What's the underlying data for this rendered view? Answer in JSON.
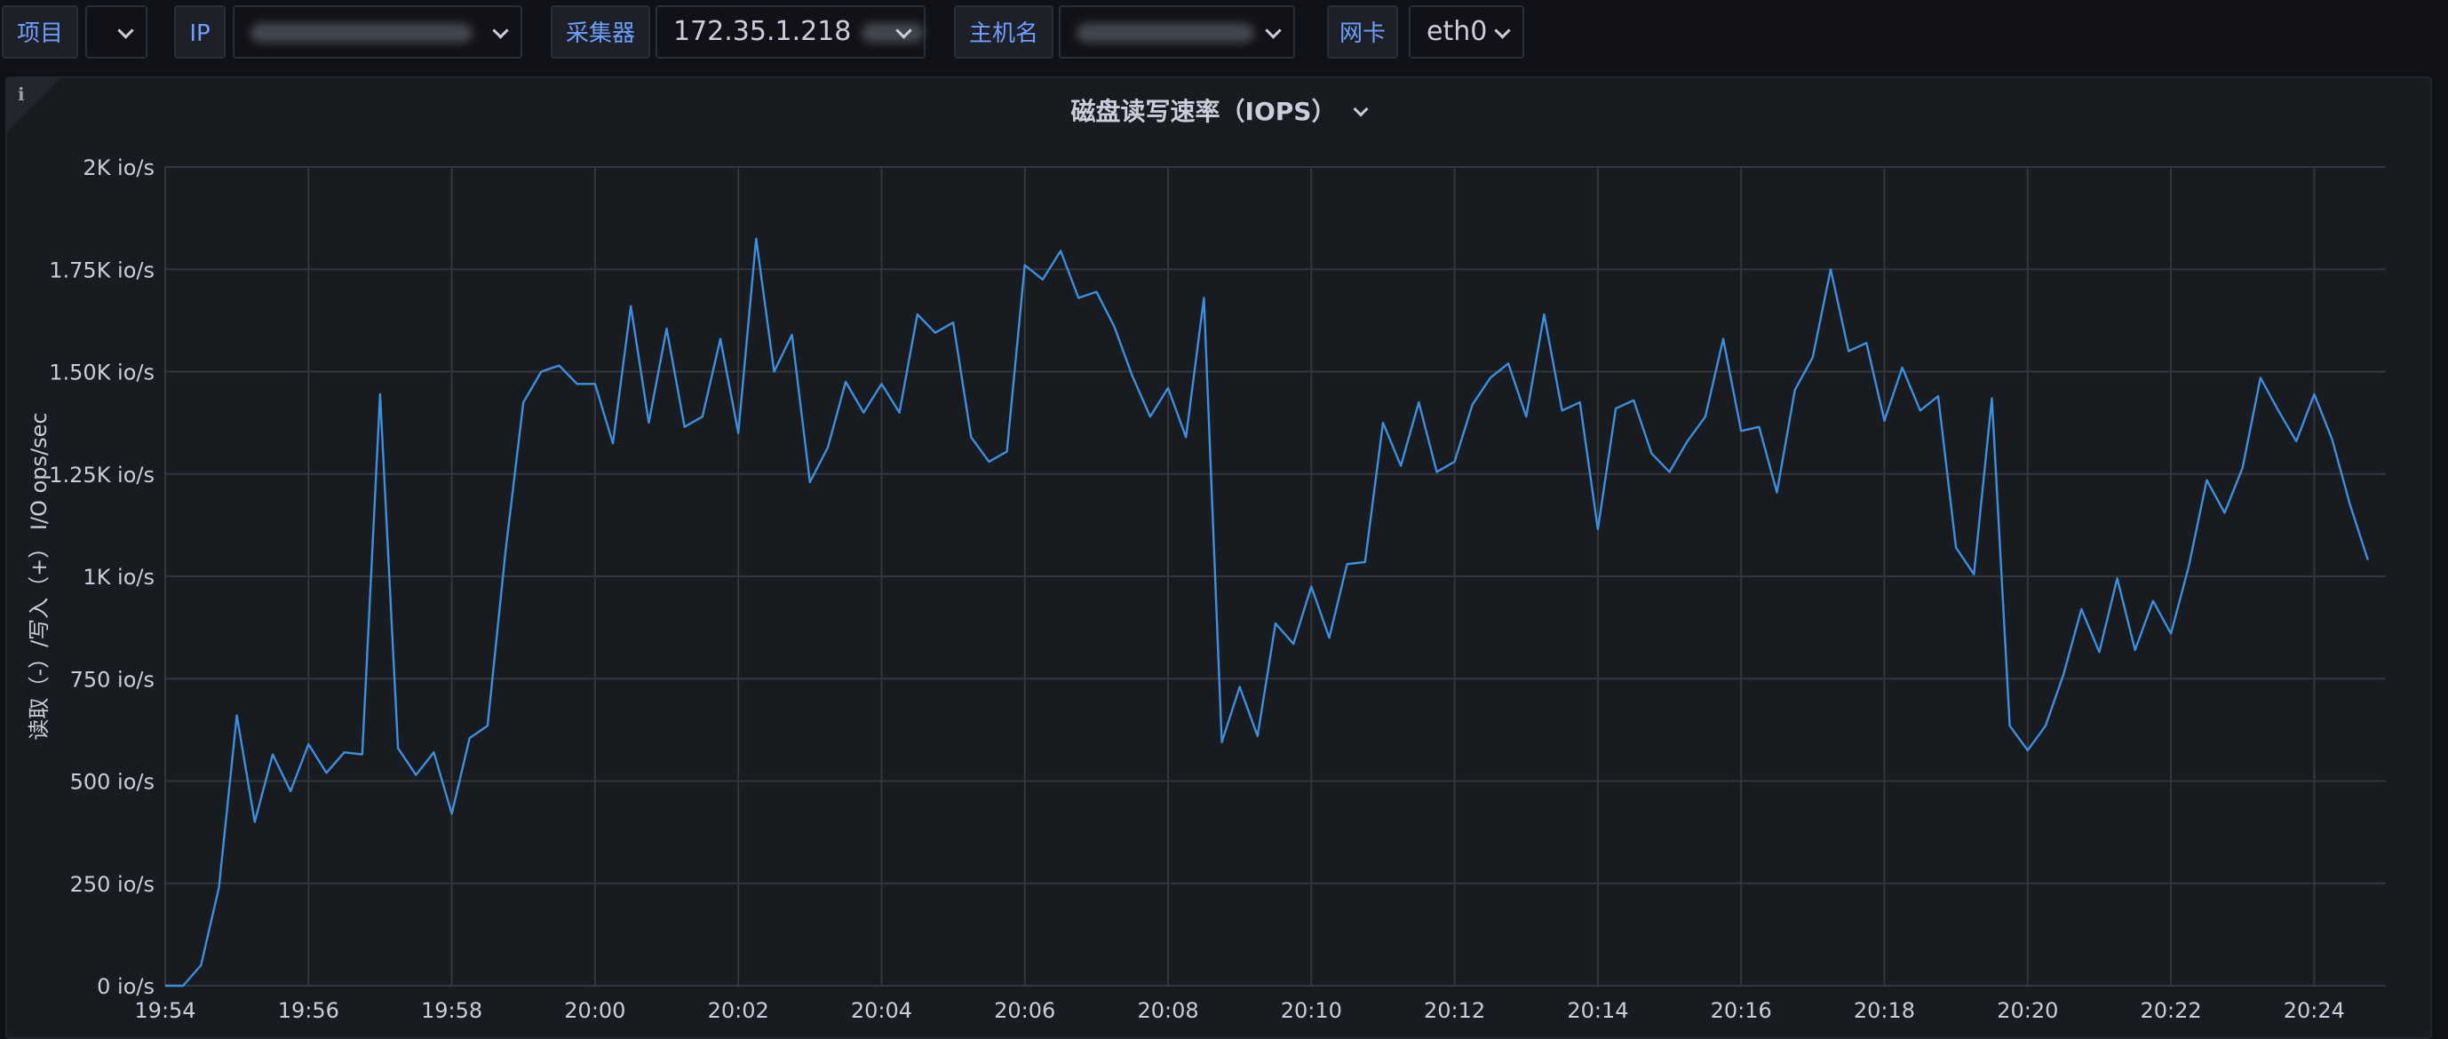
{
  "variables": [
    {
      "label": "项目",
      "value": "",
      "redacted": false
    },
    {
      "label": "IP",
      "value": "",
      "redacted": true
    },
    {
      "label": "采集器",
      "value": "172.35.1.218",
      "redacted": true
    },
    {
      "label": "主机名",
      "value": "",
      "redacted": true
    },
    {
      "label": "网卡",
      "value": "eth0",
      "redacted": false
    }
  ],
  "panel": {
    "title": "磁盘读写速率（IOPS）",
    "info_icon": "info-icon"
  },
  "colors": {
    "series": "#3d8fe0",
    "grid": "#33363d",
    "text": "#ccccdc"
  },
  "chart_data": {
    "type": "line",
    "title": "磁盘读写速率（IOPS）",
    "ylabel": "读取（-）/写入（+） I/O ops/sec",
    "xlabel": "",
    "ylim": [
      0,
      2000
    ],
    "yticks": [
      0,
      250,
      500,
      750,
      1000,
      1250,
      1500,
      1750,
      2000
    ],
    "ytick_labels": [
      "0 io/s",
      "250 io/s",
      "500 io/s",
      "750 io/s",
      "1K io/s",
      "1.25K io/s",
      "1.50K io/s",
      "1.75K io/s",
      "2K io/s"
    ],
    "xlim": [
      "19:54",
      "20:25"
    ],
    "xtick_labels": [
      "19:54",
      "19:56",
      "19:58",
      "20:00",
      "20:02",
      "20:04",
      "20:06",
      "20:08",
      "20:10",
      "20:12",
      "20:14",
      "20:16",
      "20:18",
      "20:20",
      "20:22",
      "20:24"
    ],
    "grid": true,
    "legend": "none",
    "series": [
      {
        "x": [
          "19:54:00",
          "19:54:15",
          "19:54:30",
          "19:54:45",
          "19:55:00",
          "19:55:15",
          "19:55:30",
          "19:55:45",
          "19:56:00",
          "19:56:15",
          "19:56:30",
          "19:56:45",
          "19:57:00",
          "19:57:15",
          "19:57:30",
          "19:57:45",
          "19:58:00",
          "19:58:15",
          "19:58:30",
          "19:58:45",
          "19:59:00",
          "19:59:15",
          "19:59:30",
          "19:59:45",
          "20:00:00",
          "20:00:15",
          "20:00:30",
          "20:00:45",
          "20:01:00",
          "20:01:15",
          "20:01:30",
          "20:01:45",
          "20:02:00",
          "20:02:15",
          "20:02:30",
          "20:02:45",
          "20:03:00",
          "20:03:15",
          "20:03:30",
          "20:03:45",
          "20:04:00",
          "20:04:15",
          "20:04:30",
          "20:04:45",
          "20:05:00",
          "20:05:15",
          "20:05:30",
          "20:05:45",
          "20:06:00",
          "20:06:15",
          "20:06:30",
          "20:06:45",
          "20:07:00",
          "20:07:15",
          "20:07:30",
          "20:07:45",
          "20:08:00",
          "20:08:15",
          "20:08:30",
          "20:08:45",
          "20:09:00",
          "20:09:15",
          "20:09:30",
          "20:09:45",
          "20:10:00",
          "20:10:15",
          "20:10:30",
          "20:10:45",
          "20:11:00",
          "20:11:15",
          "20:11:30",
          "20:11:45",
          "20:12:00",
          "20:12:15",
          "20:12:30",
          "20:12:45",
          "20:13:00",
          "20:13:15",
          "20:13:30",
          "20:13:45",
          "20:14:00",
          "20:14:15",
          "20:14:30",
          "20:14:45",
          "20:15:00",
          "20:15:15",
          "20:15:30",
          "20:15:45",
          "20:16:00",
          "20:16:15",
          "20:16:30",
          "20:16:45",
          "20:17:00",
          "20:17:15",
          "20:17:30",
          "20:17:45",
          "20:18:00",
          "20:18:15",
          "20:18:30",
          "20:18:45",
          "20:19:00",
          "20:19:15",
          "20:19:30",
          "20:19:45",
          "20:20:00",
          "20:20:15",
          "20:20:30",
          "20:20:45",
          "20:21:00",
          "20:21:15",
          "20:21:30",
          "20:21:45",
          "20:22:00",
          "20:22:15",
          "20:22:30",
          "20:22:45",
          "20:23:00",
          "20:23:15",
          "20:23:30",
          "20:23:45",
          "20:24:00",
          "20:24:15",
          "20:24:30",
          "20:24:45"
        ],
        "y": [
          0,
          0,
          50,
          240,
          660,
          400,
          565,
          475,
          590,
          520,
          570,
          565,
          1445,
          580,
          515,
          570,
          420,
          605,
          635,
          1060,
          1425,
          1500,
          1515,
          1470,
          1470,
          1325,
          1660,
          1375,
          1605,
          1365,
          1390,
          1580,
          1350,
          1825,
          1500,
          1590,
          1230,
          1315,
          1475,
          1400,
          1470,
          1400,
          1640,
          1595,
          1620,
          1340,
          1280,
          1305,
          1760,
          1725,
          1795,
          1680,
          1695,
          1610,
          1490,
          1390,
          1460,
          1340,
          1680,
          595,
          730,
          610,
          885,
          835,
          975,
          850,
          1030,
          1035,
          1375,
          1270,
          1425,
          1255,
          1280,
          1420,
          1485,
          1520,
          1390,
          1640,
          1405,
          1425,
          1115,
          1410,
          1430,
          1300,
          1255,
          1330,
          1390,
          1580,
          1355,
          1365,
          1205,
          1455,
          1535,
          1750,
          1550,
          1570,
          1380,
          1510,
          1405,
          1440,
          1070,
          1005,
          1435,
          635,
          575,
          635,
          760,
          920,
          815,
          995,
          820,
          940,
          860,
          1025,
          1235,
          1155,
          1265,
          1485,
          1405,
          1330,
          1445,
          1335,
          1175,
          1040
        ]
      }
    ]
  }
}
